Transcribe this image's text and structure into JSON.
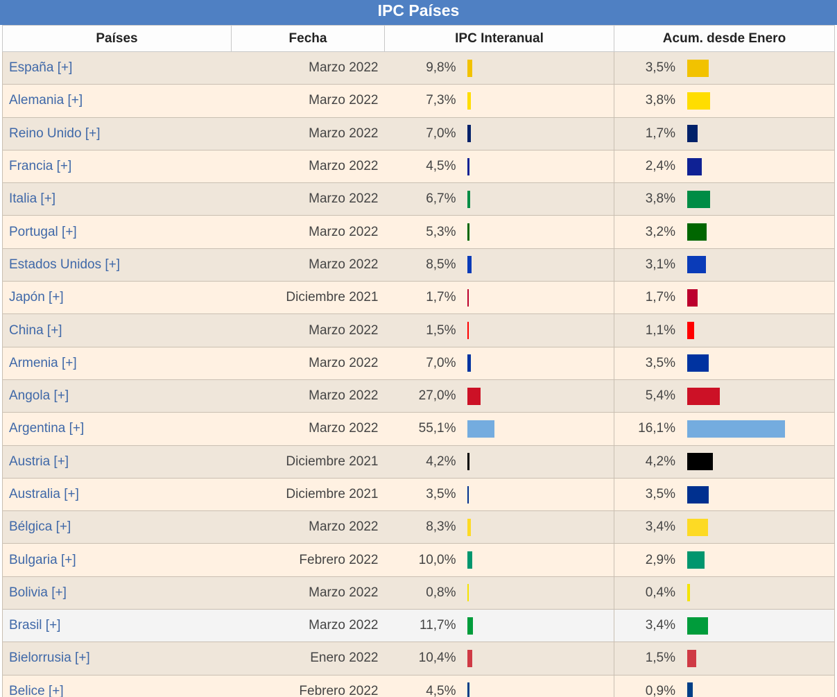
{
  "title": "IPC Países",
  "headers": {
    "country": "Países",
    "date": "Fecha",
    "ipc": "IPC Interanual",
    "acum": "Acum. desde Enero"
  },
  "rows": [
    {
      "country": "España [+]",
      "date": "Marzo 2022",
      "ipc": "9,8%",
      "acum": "3,5%",
      "ipc_value": 9.8,
      "acum_value": 3.5,
      "color": "#f2c200"
    },
    {
      "country": "Alemania [+]",
      "date": "Marzo 2022",
      "ipc": "7,3%",
      "acum": "3,8%",
      "ipc_value": 7.3,
      "acum_value": 3.8,
      "color": "#ffdd00"
    },
    {
      "country": "Reino Unido [+]",
      "date": "Marzo 2022",
      "ipc": "7,0%",
      "acum": "1,7%",
      "ipc_value": 7.0,
      "acum_value": 1.7,
      "color": "#012169"
    },
    {
      "country": "Francia [+]",
      "date": "Marzo 2022",
      "ipc": "4,5%",
      "acum": "2,4%",
      "ipc_value": 4.5,
      "acum_value": 2.4,
      "color": "#0f2194"
    },
    {
      "country": "Italia [+]",
      "date": "Marzo 2022",
      "ipc": "6,7%",
      "acum": "3,8%",
      "ipc_value": 6.7,
      "acum_value": 3.8,
      "color": "#008c45"
    },
    {
      "country": "Portugal [+]",
      "date": "Marzo 2022",
      "ipc": "5,3%",
      "acum": "3,2%",
      "ipc_value": 5.3,
      "acum_value": 3.2,
      "color": "#006600"
    },
    {
      "country": "Estados Unidos [+]",
      "date": "Marzo 2022",
      "ipc": "8,5%",
      "acum": "3,1%",
      "ipc_value": 8.5,
      "acum_value": 3.1,
      "color": "#0a3bb8"
    },
    {
      "country": "Japón [+]",
      "date": "Diciembre 2021",
      "ipc": "1,7%",
      "acum": "1,7%",
      "ipc_value": 1.7,
      "acum_value": 1.7,
      "color": "#bc002d"
    },
    {
      "country": "China [+]",
      "date": "Marzo 2022",
      "ipc": "1,5%",
      "acum": "1,1%",
      "ipc_value": 1.5,
      "acum_value": 1.1,
      "color": "#ff0000"
    },
    {
      "country": "Armenia [+]",
      "date": "Marzo 2022",
      "ipc": "7,0%",
      "acum": "3,5%",
      "ipc_value": 7.0,
      "acum_value": 3.5,
      "color": "#0033a0"
    },
    {
      "country": "Angola [+]",
      "date": "Marzo 2022",
      "ipc": "27,0%",
      "acum": "5,4%",
      "ipc_value": 27.0,
      "acum_value": 5.4,
      "color": "#cc1126"
    },
    {
      "country": "Argentina [+]",
      "date": "Marzo 2022",
      "ipc": "55,1%",
      "acum": "16,1%",
      "ipc_value": 55.1,
      "acum_value": 16.1,
      "color": "#74acdf"
    },
    {
      "country": "Austria [+]",
      "date": "Diciembre 2021",
      "ipc": "4,2%",
      "acum": "4,2%",
      "ipc_value": 4.2,
      "acum_value": 4.2,
      "color": "#000000"
    },
    {
      "country": "Australia [+]",
      "date": "Diciembre 2021",
      "ipc": "3,5%",
      "acum": "3,5%",
      "ipc_value": 3.5,
      "acum_value": 3.5,
      "color": "#00308f"
    },
    {
      "country": "Bélgica [+]",
      "date": "Marzo 2022",
      "ipc": "8,3%",
      "acum": "3,4%",
      "ipc_value": 8.3,
      "acum_value": 3.4,
      "color": "#fdda24"
    },
    {
      "country": "Bulgaria [+]",
      "date": "Febrero 2022",
      "ipc": "10,0%",
      "acum": "2,9%",
      "ipc_value": 10.0,
      "acum_value": 2.9,
      "color": "#00966e"
    },
    {
      "country": "Bolivia [+]",
      "date": "Marzo 2022",
      "ipc": "0,8%",
      "acum": "0,4%",
      "ipc_value": 0.8,
      "acum_value": 0.4,
      "color": "#f4e400"
    },
    {
      "country": "Brasil [+]",
      "date": "Marzo 2022",
      "ipc": "11,7%",
      "acum": "3,4%",
      "ipc_value": 11.7,
      "acum_value": 3.4,
      "color": "#009c3b",
      "highlighted": true
    },
    {
      "country": "Bielorrusia [+]",
      "date": "Enero 2022",
      "ipc": "10,4%",
      "acum": "1,5%",
      "ipc_value": 10.4,
      "acum_value": 1.5,
      "color": "#cf3a45"
    },
    {
      "country": "Belice [+]",
      "date": "Febrero 2022",
      "ipc": "4,5%",
      "acum": "0,9%",
      "ipc_value": 4.5,
      "acum_value": 0.9,
      "color": "#003f87"
    }
  ]
}
